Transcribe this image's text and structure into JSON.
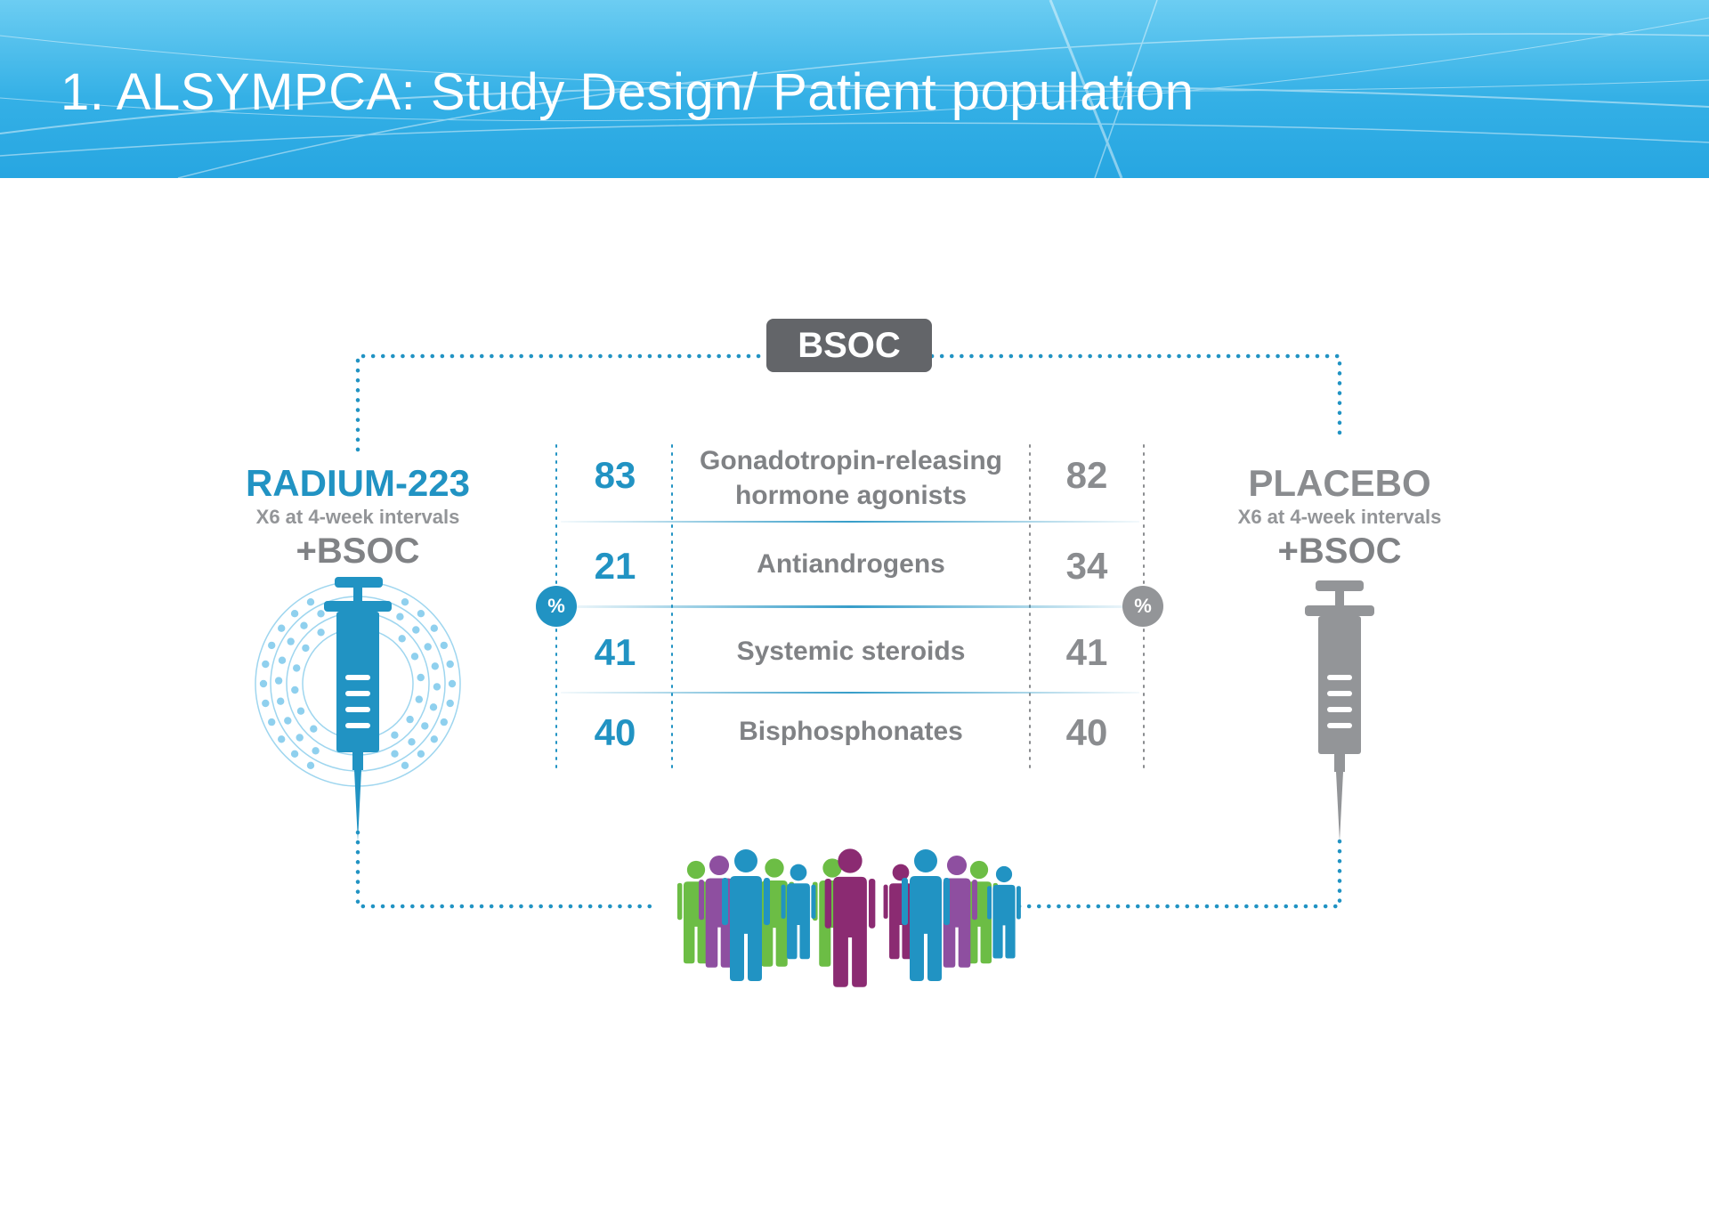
{
  "header": {
    "title": "1. ALSYMPCA: Study Design/ Patient population"
  },
  "bsoc_label": "BSOC",
  "arms": {
    "left": {
      "name": "RADIUM-223",
      "schedule": "X6 at 4-week intervals",
      "plus": "+BSOC",
      "color": "#2193c3",
      "syringe_icon": "syringe-radium-icon"
    },
    "right": {
      "name": "PLACEBO",
      "schedule": "X6 at 4-week intervals",
      "plus": "+BSOC",
      "color": "#939598",
      "syringe_icon": "syringe-placebo-icon"
    }
  },
  "percent_symbol": "%",
  "rows": [
    {
      "left": "83",
      "label": "Gonadotropin-releasing hormone agonists",
      "right": "82"
    },
    {
      "left": "21",
      "label": "Antiandrogens",
      "right": "34"
    },
    {
      "left": "41",
      "label": "Systemic steroids",
      "right": "41"
    },
    {
      "left": "40",
      "label": "Bisphosphonates",
      "right": "40"
    }
  ],
  "colors": {
    "blue": "#2193c3",
    "grey": "#939598",
    "dark_grey": "#636569",
    "green": "#6cbd45",
    "purple": "#8e4fa0",
    "magenta": "#8b2b72"
  },
  "patients_icon": "people-group-icon"
}
